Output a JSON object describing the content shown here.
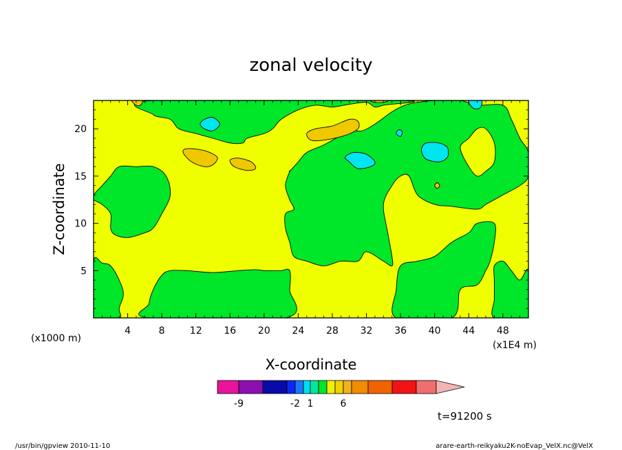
{
  "chart_data": {
    "type": "heatmap",
    "title": "zonal velocity",
    "xlabel": "X-coordinate",
    "ylabel": "Z-coordinate",
    "x_unit": "(x1E4 m)",
    "y_unit": "(x1000 m)",
    "xlim": [
      0,
      51
    ],
    "ylim": [
      0,
      23
    ],
    "x_ticks": [
      4,
      8,
      12,
      16,
      20,
      24,
      28,
      32,
      36,
      40,
      44,
      48
    ],
    "y_ticks": [
      5,
      10,
      15,
      20
    ],
    "annotation_time": "t=91200 s",
    "footer_left": "/usr/bin/gpview   2010-11-10",
    "footer_right": "arare-earth-reikyaku2K-noEvap_VelX.nc@VelX",
    "colorbar": {
      "tick_labels": [
        {
          "label": "-9",
          "value": -9
        },
        {
          "label": "-2",
          "value": -2
        },
        {
          "label": "1",
          "value": 1
        },
        {
          "label": "6",
          "value": 6
        }
      ],
      "colors": [
        "#e8149a",
        "#8b10b0",
        "#0a0aa8",
        "#0a28f0",
        "#1e78ff",
        "#00dcf0",
        "#00e6a0",
        "#00e628",
        "#f0f000",
        "#f0d000",
        "#f0b418",
        "#f08c00",
        "#f06400",
        "#f01414",
        "#f06e6e",
        "#f5b4b4"
      ]
    },
    "background_level_color": "#f0ff00",
    "regions": [
      {
        "level": "green",
        "color": "#00e628",
        "points": [
          [
            7,
            23
          ],
          [
            7,
            21.5
          ],
          [
            9,
            21
          ],
          [
            10,
            20
          ],
          [
            12,
            19.5
          ],
          [
            14,
            19
          ],
          [
            16,
            18.5
          ],
          [
            17.5,
            18.5
          ],
          [
            18,
            19
          ],
          [
            20,
            19.5
          ],
          [
            21,
            20
          ],
          [
            22,
            21
          ],
          [
            24,
            22
          ],
          [
            26,
            22.5
          ],
          [
            28,
            22.3
          ],
          [
            30,
            22.6
          ],
          [
            32,
            22.8
          ],
          [
            33,
            22.3
          ],
          [
            34,
            22.5
          ],
          [
            36,
            23
          ]
        ]
      },
      {
        "level": "green",
        "color": "#00e628",
        "points": [
          [
            23,
            15.5
          ],
          [
            24,
            16.5
          ],
          [
            25,
            17.5
          ],
          [
            27,
            18.3
          ],
          [
            29,
            19.3
          ],
          [
            30,
            19.8
          ],
          [
            31.5,
            19.8
          ],
          [
            33,
            20.5
          ],
          [
            35,
            21.8
          ],
          [
            36.5,
            22.5
          ],
          [
            38,
            22.8
          ],
          [
            40,
            23
          ],
          [
            43,
            23
          ],
          [
            45,
            22.5
          ],
          [
            48,
            22.5
          ],
          [
            49,
            21
          ],
          [
            50,
            19
          ],
          [
            51,
            17.5
          ],
          [
            51,
            15
          ],
          [
            50,
            14
          ],
          [
            48,
            13
          ],
          [
            46,
            12
          ],
          [
            45,
            11.5
          ],
          [
            42,
            11.8
          ],
          [
            40,
            12
          ],
          [
            38,
            13
          ],
          [
            37,
            15
          ],
          [
            36,
            15
          ],
          [
            35,
            14
          ],
          [
            34,
            12
          ],
          [
            34.5,
            9
          ],
          [
            35,
            6.5
          ],
          [
            35,
            5.5
          ],
          [
            34,
            6
          ],
          [
            32,
            7
          ],
          [
            31,
            6
          ],
          [
            29,
            6
          ],
          [
            27,
            5.5
          ],
          [
            25,
            6
          ],
          [
            23.5,
            6.5
          ],
          [
            23,
            8
          ],
          [
            22.5,
            9.5
          ],
          [
            22.5,
            11
          ],
          [
            23.5,
            11.5
          ],
          [
            23,
            12.5
          ],
          [
            22.5,
            14
          ],
          [
            23,
            15.5
          ]
        ]
      },
      {
        "level": "green",
        "color": "#00e628",
        "points": [
          [
            0,
            13
          ],
          [
            1,
            14
          ],
          [
            2,
            15
          ],
          [
            3,
            16
          ],
          [
            5,
            16
          ],
          [
            7,
            16
          ],
          [
            8.5,
            15
          ],
          [
            9,
            13
          ],
          [
            8,
            11
          ],
          [
            7,
            9.5
          ],
          [
            6,
            9
          ],
          [
            4,
            8.5
          ],
          [
            2.5,
            8.8
          ],
          [
            2,
            9.5
          ],
          [
            2,
            11
          ],
          [
            1,
            12
          ],
          [
            0,
            12.5
          ]
        ]
      },
      {
        "level": "green",
        "color": "#00e628",
        "points": [
          [
            6.5,
            0
          ],
          [
            6.5,
            1.5
          ],
          [
            7,
            3
          ],
          [
            8,
            4.5
          ],
          [
            9,
            5
          ],
          [
            11,
            5
          ],
          [
            14,
            4.8
          ],
          [
            17,
            5
          ],
          [
            19,
            5.1
          ],
          [
            20,
            5
          ],
          [
            21,
            5
          ],
          [
            22,
            5
          ],
          [
            23,
            5
          ],
          [
            23,
            3
          ],
          [
            22.5,
            0
          ]
        ]
      },
      {
        "level": "green",
        "color": "#00e628",
        "points": [
          [
            0,
            6
          ],
          [
            1,
            5.8
          ],
          [
            2,
            5.5
          ],
          [
            3,
            4
          ],
          [
            3.5,
            2.5
          ],
          [
            3,
            1
          ],
          [
            3,
            0
          ],
          [
            0,
            0
          ]
        ]
      },
      {
        "level": "green",
        "color": "#00e628",
        "points": [
          [
            35.5,
            0
          ],
          [
            35.5,
            3
          ],
          [
            36,
            5.5
          ],
          [
            38,
            6
          ],
          [
            40,
            6.5
          ],
          [
            42,
            8
          ],
          [
            44,
            9
          ],
          [
            45,
            10
          ],
          [
            47,
            10
          ],
          [
            47,
            8
          ],
          [
            46.5,
            6
          ],
          [
            46,
            5
          ],
          [
            45,
            3.5
          ],
          [
            43,
            3
          ],
          [
            42,
            0
          ]
        ]
      },
      {
        "level": "green",
        "color": "#00e628",
        "points": [
          [
            47,
            0
          ],
          [
            47,
            2
          ],
          [
            47,
            4
          ],
          [
            47,
            5.5
          ],
          [
            48,
            6
          ],
          [
            49,
            5
          ],
          [
            50,
            4
          ],
          [
            51,
            5
          ],
          [
            51,
            0
          ]
        ]
      },
      {
        "level": "yellow",
        "color": "#f0ff00",
        "points": [
          [
            44,
            19
          ],
          [
            45,
            20
          ],
          [
            46,
            20
          ],
          [
            47,
            18.5
          ],
          [
            47,
            16.5
          ],
          [
            46,
            15.5
          ],
          [
            45,
            15
          ],
          [
            44,
            16
          ],
          [
            43,
            18
          ]
        ]
      },
      {
        "level": "cyan",
        "color": "#00e6f0",
        "points": [
          [
            12.5,
            20.5
          ],
          [
            13,
            21
          ],
          [
            14,
            21.2
          ],
          [
            14.8,
            20.5
          ],
          [
            14,
            19.8
          ],
          [
            13,
            20
          ]
        ]
      },
      {
        "level": "cyan",
        "color": "#00e6f0",
        "points": [
          [
            29.5,
            17
          ],
          [
            30.5,
            17.5
          ],
          [
            32,
            17.3
          ],
          [
            33,
            16.5
          ],
          [
            32.5,
            16
          ],
          [
            31,
            15.8
          ],
          [
            30,
            16.5
          ]
        ]
      },
      {
        "level": "cyan",
        "color": "#00e6f0",
        "points": [
          [
            38.5,
            18
          ],
          [
            39,
            18.5
          ],
          [
            40.5,
            18.5
          ],
          [
            41.5,
            18
          ],
          [
            41.5,
            17
          ],
          [
            40.5,
            16.5
          ],
          [
            39,
            16.8
          ],
          [
            38.5,
            17.5
          ]
        ]
      },
      {
        "level": "cyan",
        "color": "#00e6f0",
        "points": [
          [
            35.5,
            19.5
          ],
          [
            35.8,
            19.9
          ],
          [
            36.2,
            19.7
          ],
          [
            36,
            19.2
          ]
        ]
      },
      {
        "level": "cyan",
        "color": "#00e6f0",
        "points": [
          [
            44,
            23
          ],
          [
            44.5,
            22.2
          ],
          [
            45.3,
            22.2
          ],
          [
            45.5,
            23
          ]
        ]
      },
      {
        "level": "orange",
        "color": "#f0c800",
        "points": [
          [
            10.5,
            17.5
          ],
          [
            11,
            17.9
          ],
          [
            13,
            17.7
          ],
          [
            14.5,
            17
          ],
          [
            14,
            16.2
          ],
          [
            13,
            16
          ],
          [
            11.5,
            16.5
          ]
        ]
      },
      {
        "level": "orange",
        "color": "#f0c800",
        "points": [
          [
            16,
            16.7
          ],
          [
            17,
            16.9
          ],
          [
            18.5,
            16.5
          ],
          [
            19,
            15.8
          ],
          [
            18,
            15.6
          ],
          [
            16.5,
            16
          ]
        ]
      },
      {
        "level": "orange",
        "color": "#f0c800",
        "points": [
          [
            25,
            19.5
          ],
          [
            26,
            20
          ],
          [
            28,
            20.3
          ],
          [
            30,
            21
          ],
          [
            31,
            20.8
          ],
          [
            31,
            20
          ],
          [
            29.5,
            19.3
          ],
          [
            27,
            18.8
          ],
          [
            25.5,
            18.8
          ]
        ]
      },
      {
        "level": "orange",
        "color": "#f0c800",
        "points": [
          [
            4.5,
            23
          ],
          [
            5,
            22.5
          ],
          [
            5.5,
            22.5
          ],
          [
            5.7,
            23
          ]
        ]
      },
      {
        "level": "orange",
        "color": "#f0c800",
        "points": [
          [
            32.5,
            23
          ],
          [
            33,
            22.8
          ],
          [
            34,
            22.8
          ],
          [
            34.5,
            23
          ]
        ]
      },
      {
        "level": "orange",
        "color": "#f0c800",
        "points": [
          [
            40,
            14
          ],
          [
            40.3,
            14.3
          ],
          [
            40.6,
            14
          ],
          [
            40.3,
            13.7
          ]
        ]
      }
    ]
  }
}
